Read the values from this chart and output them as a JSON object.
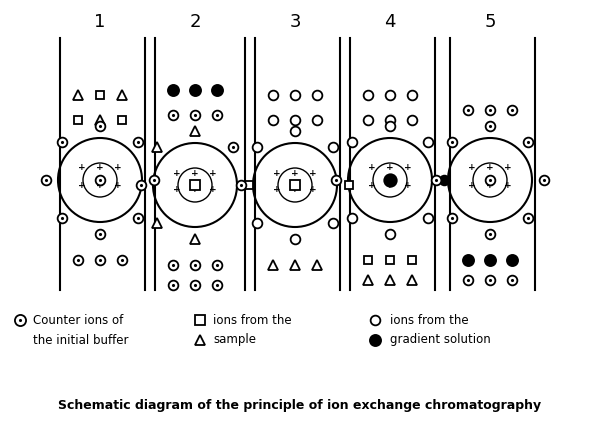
{
  "title": "Schematic diagram of the principle of ion exchange chromatography",
  "column_labels": [
    "1",
    "2",
    "3",
    "4",
    "5"
  ],
  "bg_color": "#ffffff",
  "fig_width": 6.0,
  "fig_height": 4.26,
  "dpi": 100
}
